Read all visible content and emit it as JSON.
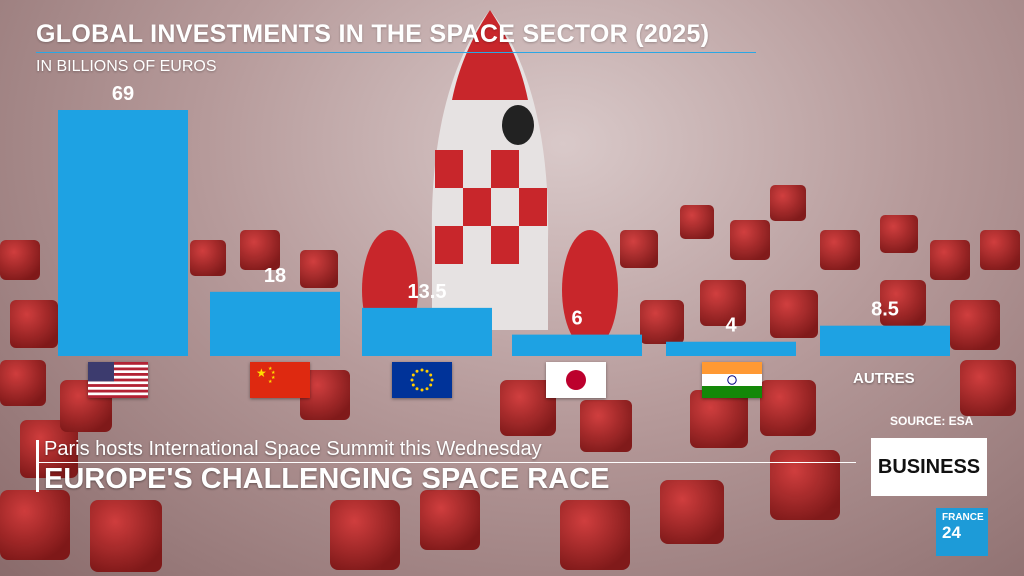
{
  "title": "GLOBAL INVESTMENTS IN THE SPACE SECTOR (2025)",
  "subtitle": "IN BILLIONS OF EUROS",
  "source": "SOURCE: ESA",
  "headline_small": "Paris hosts International Space Summit this Wednesday",
  "headline_big": "EUROPE'S CHALLENGING SPACE RACE",
  "section_badge": "BUSINESS",
  "channel_logo": {
    "line1": "FRANCE",
    "line2": "24"
  },
  "colors": {
    "bar": "#1ea2e3",
    "accent": "#2aa7e4"
  },
  "chart_data": {
    "type": "bar",
    "title": "GLOBAL INVESTMENTS IN THE SPACE SECTOR (2025)",
    "ylabel": "IN BILLIONS OF EUROS",
    "categories": [
      "USA",
      "China",
      "EU",
      "Japan",
      "India",
      "AUTRES"
    ],
    "values": [
      69,
      18,
      13.5,
      6,
      4,
      8.5
    ],
    "value_labels": [
      "69",
      "18",
      "13.5",
      "6",
      "4",
      "8.5"
    ],
    "category_marker": [
      "flag-usa",
      "flag-china",
      "flag-eu",
      "flag-japan",
      "flag-india",
      "text"
    ],
    "other_label": "AUTRES",
    "ylim": [
      0,
      69
    ],
    "grid": false,
    "legend": "none"
  }
}
